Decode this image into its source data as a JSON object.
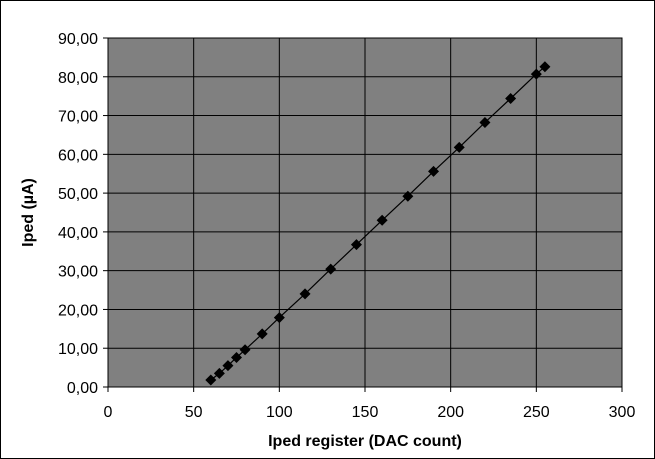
{
  "chart_data": {
    "type": "scatter",
    "xlabel": "Iped register (DAC count)",
    "ylabel": "Iped (µA)",
    "xlim": [
      0,
      300
    ],
    "ylim": [
      0,
      90
    ],
    "x_ticks": [
      0,
      50,
      100,
      150,
      200,
      250,
      300
    ],
    "y_ticks": [
      0,
      10,
      20,
      30,
      40,
      50,
      60,
      70,
      80,
      90
    ],
    "x_tick_labels": [
      "0",
      "50",
      "100",
      "150",
      "200",
      "250",
      "300"
    ],
    "y_tick_labels": [
      "0,00",
      "10,00",
      "20,00",
      "30,00",
      "40,00",
      "50,00",
      "60,00",
      "70,00",
      "80,00",
      "90,00"
    ],
    "grid": true,
    "legend": false,
    "series": [
      {
        "marker": "diamond",
        "line": "smooth",
        "color": "#000000",
        "points": [
          [
            60,
            1.8
          ],
          [
            65,
            3.5
          ],
          [
            70,
            5.5
          ],
          [
            75,
            7.6
          ],
          [
            80,
            9.6
          ],
          [
            90,
            13.7
          ],
          [
            100,
            17.9
          ],
          [
            115,
            24.0
          ],
          [
            130,
            30.4
          ],
          [
            145,
            36.7
          ],
          [
            160,
            43.0
          ],
          [
            175,
            49.2
          ],
          [
            190,
            55.6
          ],
          [
            205,
            61.8
          ],
          [
            220,
            68.2
          ],
          [
            235,
            74.4
          ],
          [
            250,
            80.7
          ],
          [
            255,
            82.6
          ]
        ]
      }
    ],
    "colors": {
      "plot_background": "#808080",
      "gridline": "#000000",
      "page_background": "#ffffff"
    }
  }
}
